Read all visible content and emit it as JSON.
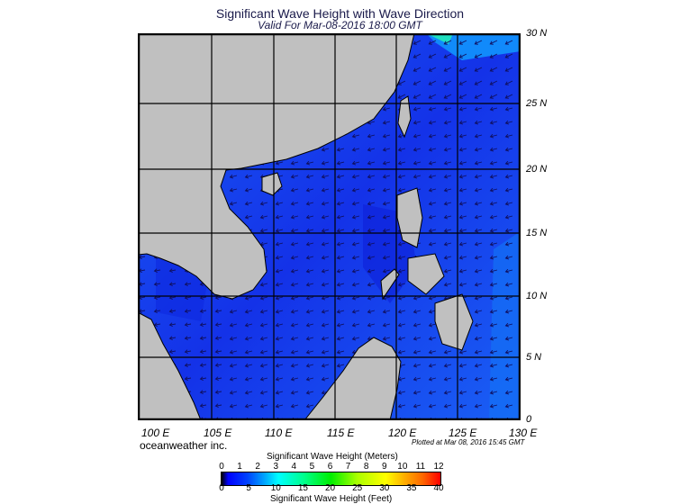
{
  "title": "Significant Wave Height with Wave Direction",
  "subtitle": "Valid For Mar-08-2016 18:00 GMT",
  "lat_labels": [
    "30 N",
    "25 N",
    "20 N",
    "15 N",
    "10 N",
    "5 N",
    "0"
  ],
  "lon_labels": [
    "100 E",
    "105 E",
    "110 E",
    "115 E",
    "120 E",
    "125 E",
    "130 E"
  ],
  "credit": "oceanweather inc.",
  "plotted": "Plotted at Mar 08, 2016 15:45 GMT",
  "colorbar": {
    "meters_title": "Significant Wave Height (Meters)",
    "meters_ticks": [
      "0",
      "1",
      "2",
      "3",
      "4",
      "5",
      "6",
      "7",
      "8",
      "9",
      "10",
      "11",
      "12"
    ],
    "feet_title": "Significant Wave Height (Feet)",
    "feet_ticks": [
      "0",
      "5",
      "10",
      "15",
      "20",
      "25",
      "30",
      "35",
      "40"
    ]
  },
  "colors": {
    "land": "#c0c0c0",
    "sea": "#1a3cf0",
    "arrow": "#101060"
  }
}
